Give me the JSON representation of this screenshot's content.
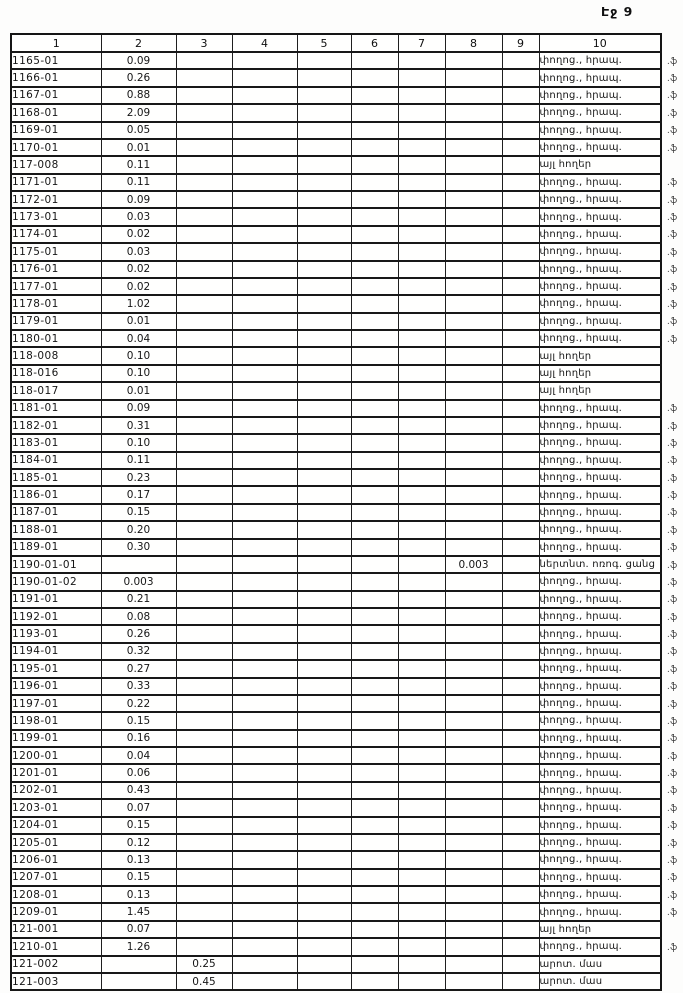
{
  "page_label": "Էջ 9",
  "margin_mark_glyph": ".ֆ",
  "table": {
    "headers": [
      "1",
      "2",
      "3",
      "4",
      "5",
      "6",
      "7",
      "8",
      "9",
      "10"
    ],
    "rows": [
      {
        "code": "1165-01",
        "v2": "0.09",
        "v3": "",
        "v8": "",
        "v10": "փողոց., հրապ.",
        "mark": true
      },
      {
        "code": "1166-01",
        "v2": "0.26",
        "v3": "",
        "v8": "",
        "v10": "փողոց., հրապ.",
        "mark": true
      },
      {
        "code": "1167-01",
        "v2": "0.88",
        "v3": "",
        "v8": "",
        "v10": "փողոց., հրապ.",
        "mark": true
      },
      {
        "code": "1168-01",
        "v2": "2.09",
        "v3": "",
        "v8": "",
        "v10": "փողոց., հրապ.",
        "mark": true
      },
      {
        "code": "1169-01",
        "v2": "0.05",
        "v3": "",
        "v8": "",
        "v10": "փողոց., հրապ.",
        "mark": true
      },
      {
        "code": "1170-01",
        "v2": "0.01",
        "v3": "",
        "v8": "",
        "v10": "փողոց., հրապ.",
        "mark": true
      },
      {
        "code": "117-008",
        "v2": "0.11",
        "v3": "",
        "v8": "",
        "v10": "այլ հողեր",
        "mark": false
      },
      {
        "code": "1171-01",
        "v2": "0.11",
        "v3": "",
        "v8": "",
        "v10": "փողոց., հրապ.",
        "mark": true
      },
      {
        "code": "1172-01",
        "v2": "0.09",
        "v3": "",
        "v8": "",
        "v10": "փողոց., հրապ.",
        "mark": true
      },
      {
        "code": "1173-01",
        "v2": "0.03",
        "v3": "",
        "v8": "",
        "v10": "փողոց., հրապ.",
        "mark": true
      },
      {
        "code": "1174-01",
        "v2": "0.02",
        "v3": "",
        "v8": "",
        "v10": "փողոց., հրապ.",
        "mark": true
      },
      {
        "code": "1175-01",
        "v2": "0.03",
        "v3": "",
        "v8": "",
        "v10": "փողոց., հրապ.",
        "mark": true
      },
      {
        "code": "1176-01",
        "v2": "0.02",
        "v3": "",
        "v8": "",
        "v10": "փողոց., հրապ.",
        "mark": true
      },
      {
        "code": "1177-01",
        "v2": "0.02",
        "v3": "",
        "v8": "",
        "v10": "փողոց., հրապ.",
        "mark": true
      },
      {
        "code": "1178-01",
        "v2": "1.02",
        "v3": "",
        "v8": "",
        "v10": "փողոց., հրապ.",
        "mark": true
      },
      {
        "code": "1179-01",
        "v2": "0.01",
        "v3": "",
        "v8": "",
        "v10": "փողոց., հրապ.",
        "mark": true
      },
      {
        "code": "1180-01",
        "v2": "0.04",
        "v3": "",
        "v8": "",
        "v10": "փողոց., հրապ.",
        "mark": true
      },
      {
        "code": "118-008",
        "v2": "0.10",
        "v3": "",
        "v8": "",
        "v10": "այլ հողեր",
        "mark": false
      },
      {
        "code": "118-016",
        "v2": "0.10",
        "v3": "",
        "v8": "",
        "v10": "այլ հողեր",
        "mark": false
      },
      {
        "code": "118-017",
        "v2": "0.01",
        "v3": "",
        "v8": "",
        "v10": "այլ հողեր",
        "mark": false
      },
      {
        "code": "1181-01",
        "v2": "0.09",
        "v3": "",
        "v8": "",
        "v10": "փողոց., հրապ.",
        "mark": true
      },
      {
        "code": "1182-01",
        "v2": "0.31",
        "v3": "",
        "v8": "",
        "v10": "փողոց., հրապ.",
        "mark": true
      },
      {
        "code": "1183-01",
        "v2": "0.10",
        "v3": "",
        "v8": "",
        "v10": "փողոց., հրապ.",
        "mark": true
      },
      {
        "code": "1184-01",
        "v2": "0.11",
        "v3": "",
        "v8": "",
        "v10": "փողոց., հրապ.",
        "mark": true
      },
      {
        "code": "1185-01",
        "v2": "0.23",
        "v3": "",
        "v8": "",
        "v10": "փողոց., հրապ.",
        "mark": true
      },
      {
        "code": "1186-01",
        "v2": "0.17",
        "v3": "",
        "v8": "",
        "v10": "փողոց., հրապ.",
        "mark": true
      },
      {
        "code": "1187-01",
        "v2": "0.15",
        "v3": "",
        "v8": "",
        "v10": "փողոց., հրապ.",
        "mark": true
      },
      {
        "code": "1188-01",
        "v2": "0.20",
        "v3": "",
        "v8": "",
        "v10": "փողոց., հրապ.",
        "mark": true
      },
      {
        "code": "1189-01",
        "v2": "0.30",
        "v3": "",
        "v8": "",
        "v10": "փողոց., հրապ.",
        "mark": true
      },
      {
        "code": "1190-01-01",
        "v2": "",
        "v3": "",
        "v8": "0.003",
        "v10": "ներտնտ. ոռոգ. ցանց",
        "mark": true
      },
      {
        "code": "1190-01-02",
        "v2": "0.003",
        "v3": "",
        "v8": "",
        "v10": "փողոց., հրապ.",
        "mark": true
      },
      {
        "code": "1191-01",
        "v2": "0.21",
        "v3": "",
        "v8": "",
        "v10": "փողոց., հրապ.",
        "mark": true
      },
      {
        "code": "1192-01",
        "v2": "0.08",
        "v3": "",
        "v8": "",
        "v10": "փողոց., հրապ.",
        "mark": true
      },
      {
        "code": "1193-01",
        "v2": "0.26",
        "v3": "",
        "v8": "",
        "v10": "փողոց., հրապ.",
        "mark": true
      },
      {
        "code": "1194-01",
        "v2": "0.32",
        "v3": "",
        "v8": "",
        "v10": "փողոց., հրապ.",
        "mark": true
      },
      {
        "code": "1195-01",
        "v2": "0.27",
        "v3": "",
        "v8": "",
        "v10": "փողոց., հրապ.",
        "mark": true
      },
      {
        "code": "1196-01",
        "v2": "0.33",
        "v3": "",
        "v8": "",
        "v10": "փողոց., հրապ.",
        "mark": true
      },
      {
        "code": "1197-01",
        "v2": "0.22",
        "v3": "",
        "v8": "",
        "v10": "փողոց., հրապ.",
        "mark": true
      },
      {
        "code": "1198-01",
        "v2": "0.15",
        "v3": "",
        "v8": "",
        "v10": "փողոց., հրապ.",
        "mark": true
      },
      {
        "code": "1199-01",
        "v2": "0.16",
        "v3": "",
        "v8": "",
        "v10": "փողոց., հրապ.",
        "mark": true
      },
      {
        "code": "1200-01",
        "v2": "0.04",
        "v3": "",
        "v8": "",
        "v10": "փողոց., հրապ.",
        "mark": true
      },
      {
        "code": "1201-01",
        "v2": "0.06",
        "v3": "",
        "v8": "",
        "v10": "փողոց., հրապ.",
        "mark": true
      },
      {
        "code": "1202-01",
        "v2": "0.43",
        "v3": "",
        "v8": "",
        "v10": "փողոց., հրապ.",
        "mark": true
      },
      {
        "code": "1203-01",
        "v2": "0.07",
        "v3": "",
        "v8": "",
        "v10": "փողոց., հրապ.",
        "mark": true
      },
      {
        "code": "1204-01",
        "v2": "0.15",
        "v3": "",
        "v8": "",
        "v10": "փողոց., հրապ.",
        "mark": true
      },
      {
        "code": "1205-01",
        "v2": "0.12",
        "v3": "",
        "v8": "",
        "v10": "փողոց., հրապ.",
        "mark": true
      },
      {
        "code": "1206-01",
        "v2": "0.13",
        "v3": "",
        "v8": "",
        "v10": "փողոց., հրապ.",
        "mark": true
      },
      {
        "code": "1207-01",
        "v2": "0.15",
        "v3": "",
        "v8": "",
        "v10": "փողոց., հրապ.",
        "mark": true
      },
      {
        "code": "1208-01",
        "v2": "0.13",
        "v3": "",
        "v8": "",
        "v10": "փողոց., հրապ.",
        "mark": true
      },
      {
        "code": "1209-01",
        "v2": "1.45",
        "v3": "",
        "v8": "",
        "v10": "փողոց., հրապ.",
        "mark": true
      },
      {
        "code": "121-001",
        "v2": "0.07",
        "v3": "",
        "v8": "",
        "v10": "այլ հողեր",
        "mark": false
      },
      {
        "code": "1210-01",
        "v2": "1.26",
        "v3": "",
        "v8": "",
        "v10": "փողոց., հրապ.",
        "mark": true
      },
      {
        "code": "121-002",
        "v2": "",
        "v3": "0.25",
        "v8": "",
        "v10": "արոտ. մաս",
        "mark": false
      },
      {
        "code": "121-003",
        "v2": "",
        "v3": "0.45",
        "v8": "",
        "v10": "արոտ. մաս",
        "mark": false
      }
    ]
  }
}
